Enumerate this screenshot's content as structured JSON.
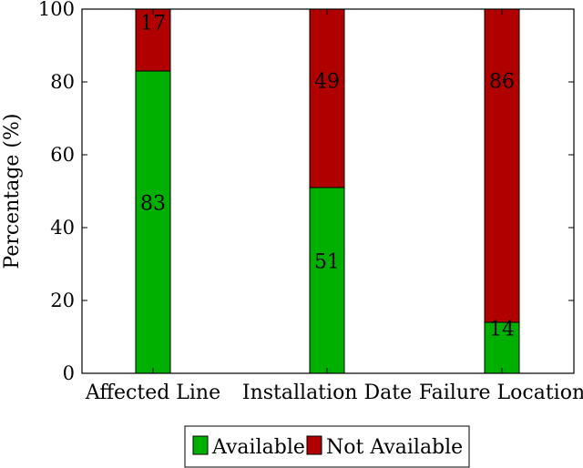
{
  "chart_data": {
    "type": "bar",
    "stacked": true,
    "categories": [
      "Affected Line",
      "Installation Date",
      "Failure Location"
    ],
    "series": [
      {
        "name": "Available",
        "values": [
          83,
          51,
          14
        ],
        "color": "#00b000"
      },
      {
        "name": "Not Available",
        "values": [
          17,
          49,
          86
        ],
        "color": "#b00000"
      }
    ],
    "data_labels": [
      [
        "83",
        "51",
        "14"
      ],
      [
        "17",
        "49",
        "86"
      ]
    ],
    "ylabel": "Percentage (%)",
    "xlabel": "",
    "ylim": [
      0,
      100
    ],
    "yticks": [
      0,
      20,
      40,
      60,
      80,
      100
    ],
    "ytick_labels": [
      "0",
      "20",
      "40",
      "60",
      "80",
      "100"
    ],
    "grid": false,
    "legend_position": "bottom-center"
  }
}
